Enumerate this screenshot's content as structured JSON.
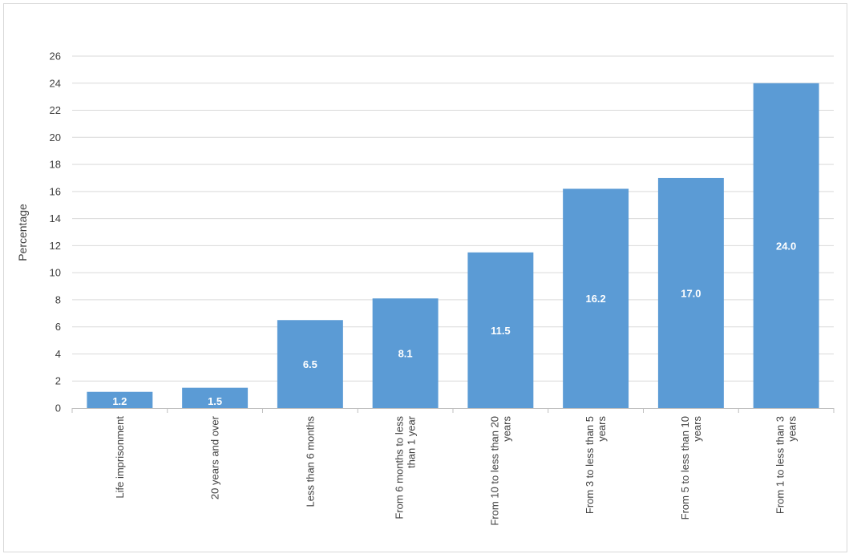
{
  "chart_data": {
    "type": "bar",
    "ylabel": "Percentage",
    "xlabel": "",
    "ylim": [
      0,
      26
    ],
    "yticks": [
      0,
      2,
      4,
      6,
      8,
      10,
      12,
      14,
      16,
      18,
      20,
      22,
      24,
      26
    ],
    "grid": true,
    "bar_color": "#5b9bd5",
    "categories": [
      [
        "Life imprisonment"
      ],
      [
        "20 years and over"
      ],
      [
        "Less than 6 months"
      ],
      [
        "From 6 months to less",
        "than 1 year"
      ],
      [
        "From 10 to less than 20",
        "years"
      ],
      [
        "From 3 to less than 5",
        "years"
      ],
      [
        "From 5 to less than 10",
        "years"
      ],
      [
        "From 1 to less than 3",
        "years"
      ]
    ],
    "values": [
      1.2,
      1.5,
      6.5,
      8.1,
      11.5,
      16.2,
      17.0,
      24.0
    ],
    "value_labels": [
      "1.2",
      "1.5",
      "6.5",
      "8.1",
      "11.5",
      "16.2",
      "17.0",
      "24.0"
    ]
  }
}
